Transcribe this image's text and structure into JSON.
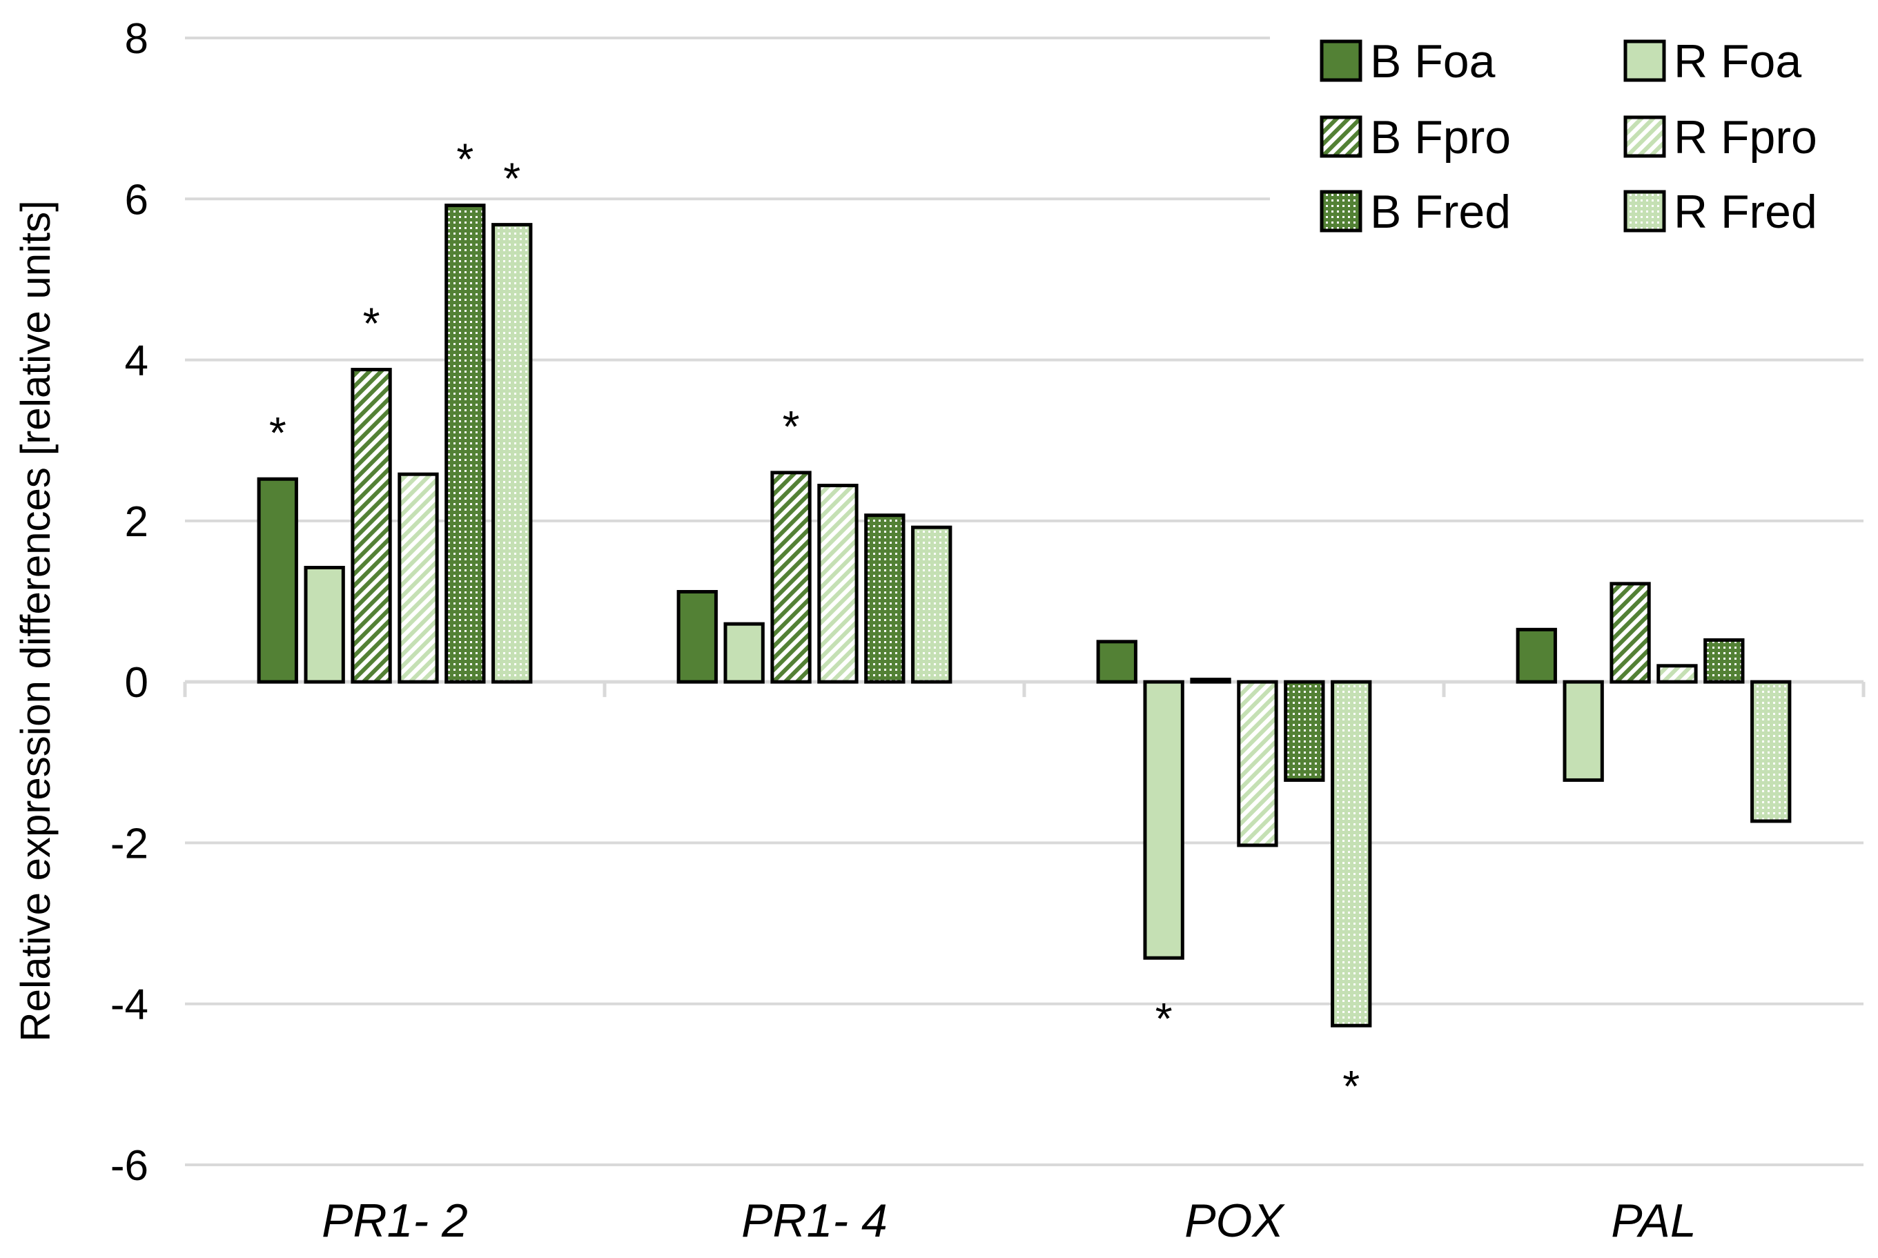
{
  "chart_data": {
    "type": "bar",
    "title": "",
    "xlabel": "",
    "ylabel": "Relative expression differences [relative units]",
    "ylim": [
      -6,
      8
    ],
    "yticks": [
      8,
      6,
      4,
      2,
      0,
      -2,
      -4,
      -6
    ],
    "grid": true,
    "legend_position": "top-right",
    "categories": [
      "PR1- 2",
      "PR1- 4",
      "POX",
      "PAL"
    ],
    "series": [
      {
        "name": "B Foa",
        "color": "#538135",
        "pattern": "solid",
        "values": [
          2.52,
          1.12,
          0.5,
          0.65
        ],
        "significant": [
          true,
          false,
          false,
          false
        ]
      },
      {
        "name": "R Foa",
        "color": "#c5e0b4",
        "pattern": "solid",
        "values": [
          1.42,
          0.72,
          -3.43,
          -1.22
        ],
        "significant": [
          false,
          false,
          true,
          false
        ]
      },
      {
        "name": "B Fpro",
        "color": "#538135",
        "pattern": "diagonal",
        "values": [
          3.88,
          2.6,
          0.03,
          1.22
        ],
        "significant": [
          true,
          true,
          false,
          false
        ]
      },
      {
        "name": "R Fpro",
        "color": "#c5e0b4",
        "pattern": "diagonal",
        "values": [
          2.58,
          2.44,
          -2.03,
          0.2
        ],
        "significant": [
          false,
          false,
          false,
          false
        ]
      },
      {
        "name": "B Fred",
        "color": "#538135",
        "pattern": "dotted",
        "values": [
          5.92,
          2.07,
          -1.22,
          0.52
        ],
        "significant": [
          true,
          false,
          false,
          false
        ]
      },
      {
        "name": "R Fred",
        "color": "#c5e0b4",
        "pattern": "dotted",
        "values": [
          5.68,
          1.92,
          -4.27,
          -1.73
        ],
        "significant": [
          true,
          false,
          true,
          false
        ]
      }
    ],
    "significance_marker": "*"
  }
}
